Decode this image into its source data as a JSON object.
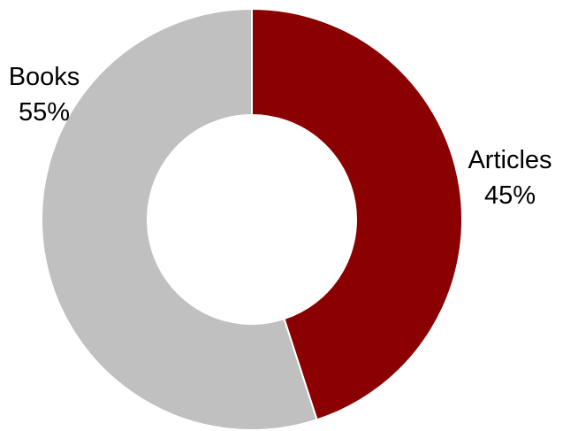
{
  "chart_data": {
    "type": "pie",
    "variant": "donut",
    "title": "",
    "slices": [
      {
        "name": "Articles",
        "value": 45,
        "label_pct": "45%",
        "color": "#8B0000"
      },
      {
        "name": "Books",
        "value": 55,
        "label_pct": "55%",
        "color": "#C0C0C0"
      }
    ],
    "start_angle_deg": 0,
    "direction": "clockwise",
    "slice_border_color": "#FFFFFF",
    "legend": "none"
  }
}
